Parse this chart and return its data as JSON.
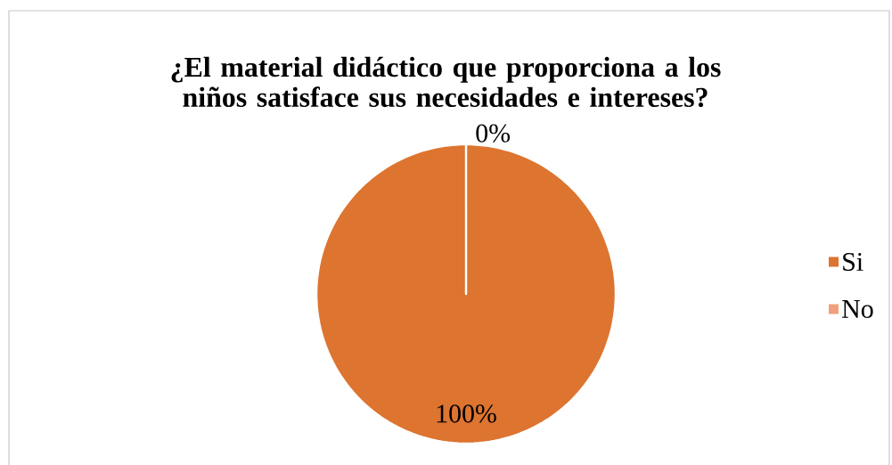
{
  "chart_data": {
    "type": "pie",
    "title": "¿El material didáctico que proporciona a los niños satisface sus necesidades e intereses?",
    "categories": [
      "Si",
      "No"
    ],
    "values": [
      100,
      0
    ],
    "colors": [
      "#dd7430",
      "#f0a07a"
    ],
    "value_labels": [
      "100%",
      "0%"
    ],
    "legend": "right"
  }
}
